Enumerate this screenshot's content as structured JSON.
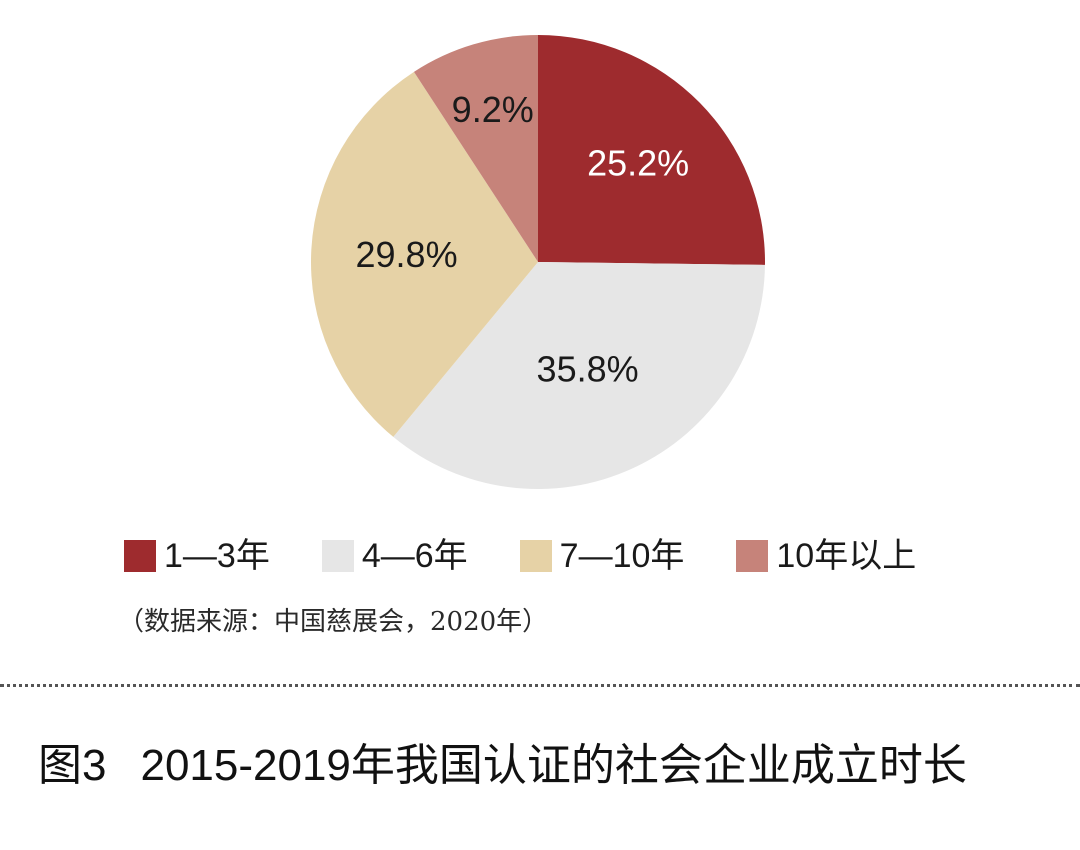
{
  "chart_data": {
    "type": "pie",
    "categories": [
      "1—3年",
      "4—6年",
      "7—10年",
      "10年以上"
    ],
    "values": [
      25.2,
      35.8,
      29.8,
      9.2
    ],
    "value_labels": [
      "25.2%",
      "35.8%",
      "29.8%",
      "9.2%"
    ],
    "colors": [
      "#9e2b2e",
      "#e6e6e6",
      "#e6d2a6",
      "#c6837a"
    ],
    "label_colors": [
      "#ffffff",
      "#1a1a1a",
      "#1a1a1a",
      "#1a1a1a"
    ],
    "start": "12 o'clock",
    "direction": "clockwise",
    "legend_placement": "bottom"
  },
  "source_note": "（数据来源：中国慈展会，2020年）",
  "caption": {
    "figure_label": "图3",
    "title": "2015-2019年我国认证的社会企业成立时长"
  }
}
